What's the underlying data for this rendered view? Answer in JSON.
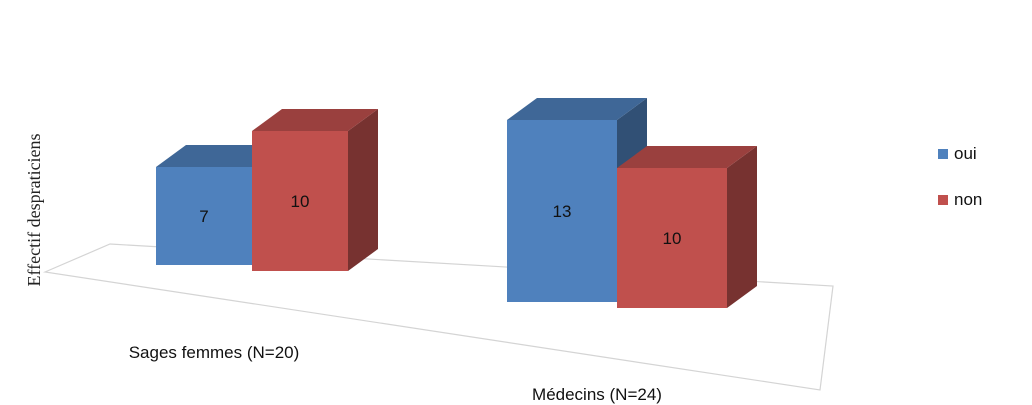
{
  "chart_data": {
    "type": "bar",
    "style": "3d-clustered-column",
    "ylabel": "Effectif despraticiens",
    "categories": [
      "Sages femmes (N=20)",
      "Médecins (N=24)"
    ],
    "series": [
      {
        "name": "oui",
        "color": "#4F81BD",
        "values": [
          7,
          13
        ]
      },
      {
        "name": "non",
        "color": "#C0504D",
        "values": [
          10,
          10
        ]
      }
    ],
    "data_labels": true,
    "legend_position": "right",
    "grid": false
  }
}
